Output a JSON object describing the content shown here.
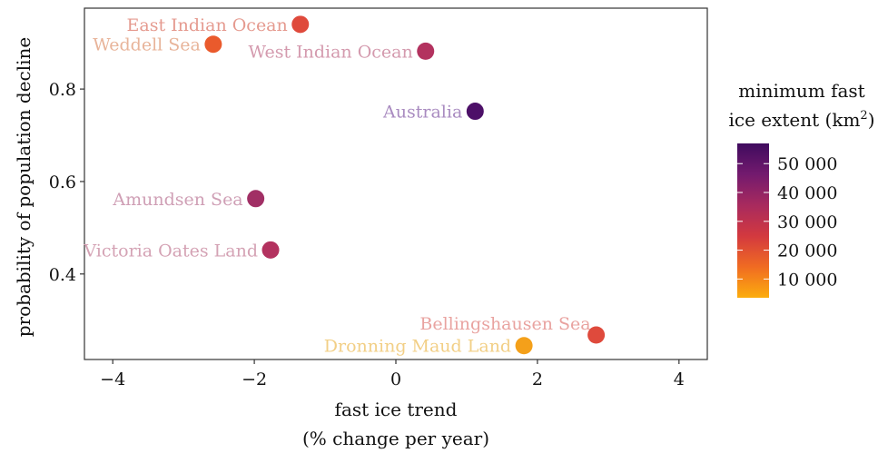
{
  "chart_data": {
    "type": "scatter",
    "title": "",
    "xlabel": "fast ice trend",
    "xlabel_line2": "(% change per year)",
    "ylabel": "probability of population decline",
    "xlim": [
      -4.4,
      4.4
    ],
    "ylim": [
      0.215,
      0.975
    ],
    "x_ticks": [
      -4,
      -2,
      0,
      2,
      4
    ],
    "x_tick_labels": [
      "−4",
      "−2",
      "0",
      "2",
      "4"
    ],
    "y_ticks": [
      0.4,
      0.6,
      0.8
    ],
    "y_tick_labels": [
      "0.4",
      "0.6",
      "0.8"
    ],
    "grid": false,
    "points": [
      {
        "label": "East Indian Ocean",
        "x": -1.35,
        "y": 0.94,
        "extent": 22000,
        "color": "#df4a3c",
        "label_color": "#e59a8f",
        "label_side": "left"
      },
      {
        "label": "Weddell Sea",
        "x": -2.58,
        "y": 0.897,
        "extent": 18000,
        "color": "#ea5a2c",
        "label_color": "#e8b49a",
        "label_side": "left"
      },
      {
        "label": "West Indian Ocean",
        "x": 0.42,
        "y": 0.882,
        "extent": 33000,
        "color": "#b3325f",
        "label_color": "#d49aae",
        "label_side": "left"
      },
      {
        "label": "Australia",
        "x": 1.12,
        "y": 0.752,
        "extent": 54000,
        "color": "#4d1068",
        "label_color": "#a98bc0",
        "label_side": "left"
      },
      {
        "label": "Amundsen Sea",
        "x": -1.98,
        "y": 0.563,
        "extent": 36000,
        "color": "#a12f65",
        "label_color": "#cf9fb5",
        "label_side": "left"
      },
      {
        "label": "Victoria Oates Land",
        "x": -1.77,
        "y": 0.452,
        "extent": 33000,
        "color": "#b3325f",
        "label_color": "#d4a2b4",
        "label_side": "left"
      },
      {
        "label": "Bellingshausen Sea",
        "x": 2.83,
        "y": 0.268,
        "extent": 22000,
        "color": "#df4a3c",
        "label_color": "#e9a3a0",
        "label_side": "above-left"
      },
      {
        "label": "Dronning Maud Land",
        "x": 1.81,
        "y": 0.245,
        "extent": 7000,
        "color": "#f4a01a",
        "label_color": "#f2cf86",
        "label_side": "left"
      }
    ],
    "legend": {
      "title_line1": "minimum fast",
      "title_line2": "ice extent (km",
      "title_sup": "2",
      "title_close": ")",
      "placement": "right",
      "range": [
        3500,
        57000
      ],
      "ticks": [
        10000,
        20000,
        30000,
        40000,
        50000
      ],
      "tick_labels": [
        "10 000",
        "20 000",
        "30 000",
        "40 000",
        "50 000"
      ],
      "gradient": [
        "#fcad0e",
        "#f06b22",
        "#d3393f",
        "#a82a5e",
        "#731a6e",
        "#3f0b5e"
      ]
    }
  }
}
